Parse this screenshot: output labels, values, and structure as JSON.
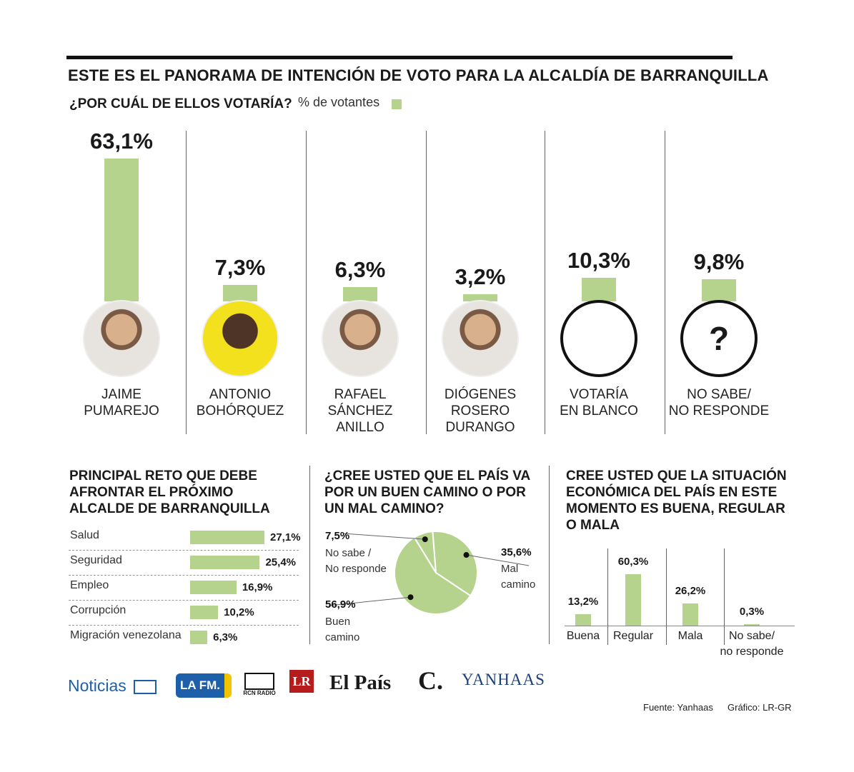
{
  "header": {
    "title": "ESTE ES EL PANORAMA DE INTENCIÓN DE  VOTO PARA LA ALCALDÍA DE BARRANQUILLA",
    "subtitle": "¿POR  CUÁL DE ELLOS VOTARÍA?",
    "legend": "% de votantes",
    "accent_color": "#b5d38d"
  },
  "candidates": [
    {
      "pct": "63,1%",
      "value": 63.1,
      "name": "JAIME\nPUMAREJO",
      "marker": "photo"
    },
    {
      "pct": "7,3%",
      "value": 7.3,
      "name": "ANTONIO\nBOHÓRQUEZ",
      "marker": "photo"
    },
    {
      "pct": "6,3%",
      "value": 6.3,
      "name": "RAFAEL\nSÁNCHEZ\nANILLO",
      "marker": "photo"
    },
    {
      "pct": "3,2%",
      "value": 3.2,
      "name": "DIÓGENES\nROSERO\nDURANGO",
      "marker": "photo"
    },
    {
      "pct": "10,3%",
      "value": 10.3,
      "name": "VOTARÍA\nEN BLANCO",
      "marker": "empty-circle"
    },
    {
      "pct": "9,8%",
      "value": 9.8,
      "name": "NO SABE/\nNO RESPONDE",
      "marker": "question-mark",
      "marker_text": "?"
    }
  ],
  "reto": {
    "title": "PRINCIPAL RETO QUE DEBE\nAFRONTAR EL PRÓXIMO\nALCALDE DE BARRANQUILLA",
    "items": [
      {
        "label": "Salud",
        "value": 27.1,
        "text": "27,1%"
      },
      {
        "label": "Seguridad",
        "value": 25.4,
        "text": "25,4%"
      },
      {
        "label": "Empleo",
        "value": 16.9,
        "text": "16,9%"
      },
      {
        "label": "Corrupción",
        "value": 10.2,
        "text": "10,2%"
      },
      {
        "label": "Migración venezolana",
        "value": 6.3,
        "text": "6,3%"
      }
    ]
  },
  "camino": {
    "title": "¿CREE USTED QUE EL PAÍS VA\nPOR UN BUEN CAMINO O POR\nUN MAL CAMINO?",
    "slices": [
      {
        "label": "No sabe /\nNo responde",
        "value": 7.5,
        "text": "7,5%"
      },
      {
        "label": "Mal\ncamino",
        "value": 35.6,
        "text": "35,6%"
      },
      {
        "label": "Buen\ncamino",
        "value": 56.9,
        "text": "56,9%"
      }
    ]
  },
  "economia": {
    "title": "CREE USTED QUE LA SITUACIÓN\nECONÓMICA DEL PAÍS EN ESTE\nMOMENTO ES BUENA, REGULAR\nO MALA",
    "bars": [
      {
        "label": "Buena",
        "value": 13.2,
        "text": "13,2%"
      },
      {
        "label": "Regular",
        "value": 60.3,
        "text": "60,3%"
      },
      {
        "label": "Mala",
        "value": 26.2,
        "text": "26,2%"
      },
      {
        "label": "No sabe/\nno responde",
        "value": 0.3,
        "text": "0,3%"
      }
    ]
  },
  "chart_data": [
    {
      "type": "bar",
      "title": "ESTE ES EL PANORAMA DE INTENCIÓN DE  VOTO PARA LA ALCALDÍA DE BARRANQUILLA",
      "subtitle": "¿POR  CUÁL DE ELLOS VOTARÍA?",
      "categories": [
        "JAIME PUMAREJO",
        "ANTONIO BOHÓRQUEZ",
        "RAFAEL SÁNCHEZ ANILLO",
        "DIÓGENES ROSERO DURANGO",
        "VOTARÍA EN BLANCO",
        "NO SABE/ NO RESPONDE"
      ],
      "values": [
        63.1,
        7.3,
        6.3,
        3.2,
        10.3,
        9.8
      ],
      "ylabel": "% de votantes",
      "grid": false
    },
    {
      "type": "bar",
      "orientation": "horizontal",
      "title": "PRINCIPAL RETO QUE DEBE AFRONTAR EL PRÓXIMO ALCALDE DE BARRANQUILLA",
      "categories": [
        "Salud",
        "Seguridad",
        "Empleo",
        "Corrupción",
        "Migración venezolana"
      ],
      "values": [
        27.1,
        25.4,
        16.9,
        10.2,
        6.3
      ]
    },
    {
      "type": "pie",
      "title": "¿CREE USTED QUE EL PAÍS VA POR UN BUEN CAMINO O POR UN MAL CAMINO?",
      "categories": [
        "No sabe / No responde",
        "Mal camino",
        "Buen camino"
      ],
      "values": [
        7.5,
        35.6,
        56.9
      ]
    },
    {
      "type": "bar",
      "title": "CREE USTED QUE LA SITUACIÓN ECONÓMICA DEL PAÍS EN ESTE MOMENTO ES BUENA, REGULAR O MALA",
      "categories": [
        "Buena",
        "Regular",
        "Mala",
        "No sabe/ no responde"
      ],
      "values": [
        13.2,
        60.3,
        26.2,
        0.3
      ]
    }
  ],
  "logos": [
    "Noticias",
    "LA FM.",
    "RCN RADIO",
    "LR",
    "El País",
    "C.",
    "YANHAAS"
  ],
  "footer": {
    "fuente": "Fuente: Yanhaas",
    "grafico": "Gráfico: LR-GR"
  }
}
